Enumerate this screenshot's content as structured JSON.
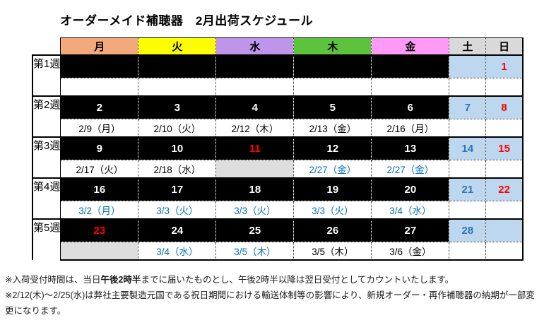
{
  "title": "オーダーメイド補聴器　2月出荷スケジュール",
  "colors": {
    "mon_header": "#F4A97C",
    "tue_header": "#FFFF00",
    "wed_header": "#BF95EC",
    "thu_header": "#5DC33B",
    "fri_header": "#FF9BF7",
    "weekend_header": "#D9D9D9",
    "weekend_cell_blue": "#BDD7EE",
    "closed_cell_gray": "#DEDEDE",
    "workday_cell_black": "#000000",
    "holiday_red": "#FF0000",
    "weekend_num_blue": "#2E75B6",
    "ship_date_blue": "#0070C0"
  },
  "table": {
    "day_headers": [
      {
        "key": "mon",
        "label": "月"
      },
      {
        "key": "tue",
        "label": "火"
      },
      {
        "key": "wed",
        "label": "水"
      },
      {
        "key": "thu",
        "label": "木"
      },
      {
        "key": "fri",
        "label": "金"
      },
      {
        "key": "sat",
        "label": "土"
      },
      {
        "key": "sun",
        "label": "日"
      }
    ],
    "weeks": [
      {
        "label": "第1週",
        "cells": [
          {
            "num": "",
            "num_style": "white",
            "cell_bg": "black",
            "ship": "",
            "ship_style": "black",
            "ship_bg": "white"
          },
          {
            "num": "",
            "num_style": "white",
            "cell_bg": "black",
            "ship": "",
            "ship_style": "black",
            "ship_bg": "white"
          },
          {
            "num": "",
            "num_style": "white",
            "cell_bg": "black",
            "ship": "",
            "ship_style": "black",
            "ship_bg": "white"
          },
          {
            "num": "",
            "num_style": "white",
            "cell_bg": "black",
            "ship": "",
            "ship_style": "black",
            "ship_bg": "white"
          },
          {
            "num": "",
            "num_style": "white",
            "cell_bg": "black",
            "ship": "",
            "ship_style": "black",
            "ship_bg": "white"
          },
          {
            "num": "",
            "num_style": "blue",
            "cell_bg": "weekend",
            "ship": "",
            "ship_style": "black",
            "ship_bg": "white"
          },
          {
            "num": "1",
            "num_style": "red",
            "cell_bg": "weekend",
            "ship": "",
            "ship_style": "black",
            "ship_bg": "white"
          }
        ]
      },
      {
        "label": "第2週",
        "cells": [
          {
            "num": "2",
            "num_style": "white",
            "cell_bg": "black",
            "ship": "2/9（月）",
            "ship_style": "black",
            "ship_bg": "white"
          },
          {
            "num": "3",
            "num_style": "white",
            "cell_bg": "black",
            "ship": "2/10（火）",
            "ship_style": "black",
            "ship_bg": "white"
          },
          {
            "num": "4",
            "num_style": "white",
            "cell_bg": "black",
            "ship": "2/12（木）",
            "ship_style": "black",
            "ship_bg": "white"
          },
          {
            "num": "5",
            "num_style": "white",
            "cell_bg": "black",
            "ship": "2/13（金）",
            "ship_style": "black",
            "ship_bg": "white"
          },
          {
            "num": "6",
            "num_style": "white",
            "cell_bg": "black",
            "ship": "2/16（月）",
            "ship_style": "black",
            "ship_bg": "white"
          },
          {
            "num": "7",
            "num_style": "blue",
            "cell_bg": "weekend",
            "ship": "",
            "ship_style": "black",
            "ship_bg": "white"
          },
          {
            "num": "8",
            "num_style": "red",
            "cell_bg": "weekend",
            "ship": "",
            "ship_style": "black",
            "ship_bg": "white"
          }
        ]
      },
      {
        "label": "第3週",
        "cells": [
          {
            "num": "9",
            "num_style": "white",
            "cell_bg": "black",
            "ship": "2/17（火）",
            "ship_style": "black",
            "ship_bg": "white"
          },
          {
            "num": "10",
            "num_style": "white",
            "cell_bg": "black",
            "ship": "2/18（水）",
            "ship_style": "black",
            "ship_bg": "white"
          },
          {
            "num": "11",
            "num_style": "red",
            "cell_bg": "black",
            "ship": "",
            "ship_style": "black",
            "ship_bg": "gray"
          },
          {
            "num": "12",
            "num_style": "white",
            "cell_bg": "black",
            "ship": "2/27（金）",
            "ship_style": "blue",
            "ship_bg": "white"
          },
          {
            "num": "13",
            "num_style": "white",
            "cell_bg": "black",
            "ship": "2/27（金）",
            "ship_style": "blue",
            "ship_bg": "white"
          },
          {
            "num": "14",
            "num_style": "blue",
            "cell_bg": "weekend",
            "ship": "",
            "ship_style": "black",
            "ship_bg": "white"
          },
          {
            "num": "15",
            "num_style": "red",
            "cell_bg": "weekend",
            "ship": "",
            "ship_style": "black",
            "ship_bg": "white"
          }
        ]
      },
      {
        "label": "第4週",
        "cells": [
          {
            "num": "16",
            "num_style": "white",
            "cell_bg": "black",
            "ship": "3/2（月）",
            "ship_style": "blue",
            "ship_bg": "white"
          },
          {
            "num": "17",
            "num_style": "white",
            "cell_bg": "black",
            "ship": "3/3（火）",
            "ship_style": "blue",
            "ship_bg": "white"
          },
          {
            "num": "18",
            "num_style": "white",
            "cell_bg": "black",
            "ship": "3/3（火）",
            "ship_style": "blue",
            "ship_bg": "white"
          },
          {
            "num": "19",
            "num_style": "white",
            "cell_bg": "black",
            "ship": "3/3（火）",
            "ship_style": "blue",
            "ship_bg": "white"
          },
          {
            "num": "20",
            "num_style": "white",
            "cell_bg": "black",
            "ship": "3/4（水）",
            "ship_style": "blue",
            "ship_bg": "white"
          },
          {
            "num": "21",
            "num_style": "blue",
            "cell_bg": "weekend",
            "ship": "",
            "ship_style": "black",
            "ship_bg": "white"
          },
          {
            "num": "22",
            "num_style": "red",
            "cell_bg": "weekend",
            "ship": "",
            "ship_style": "black",
            "ship_bg": "white"
          }
        ]
      },
      {
        "label": "第5週",
        "cells": [
          {
            "num": "23",
            "num_style": "red",
            "cell_bg": "black",
            "ship": "",
            "ship_style": "black",
            "ship_bg": "gray"
          },
          {
            "num": "24",
            "num_style": "white",
            "cell_bg": "black",
            "ship": "3/4（水）",
            "ship_style": "blue",
            "ship_bg": "white"
          },
          {
            "num": "25",
            "num_style": "white",
            "cell_bg": "black",
            "ship": "3/5（木）",
            "ship_style": "blue",
            "ship_bg": "white"
          },
          {
            "num": "26",
            "num_style": "white",
            "cell_bg": "black",
            "ship": "3/5（木）",
            "ship_style": "black",
            "ship_bg": "white"
          },
          {
            "num": "27",
            "num_style": "white",
            "cell_bg": "black",
            "ship": "3/6（金）",
            "ship_style": "black",
            "ship_bg": "white"
          },
          {
            "num": "28",
            "num_style": "blue",
            "cell_bg": "weekend",
            "ship": "",
            "ship_style": "black",
            "ship_bg": "white"
          },
          {
            "num": "",
            "num_style": "blue",
            "cell_bg": "weekend",
            "ship": "",
            "ship_style": "black",
            "ship_bg": "white"
          }
        ]
      }
    ]
  },
  "notes": [
    {
      "segments": [
        {
          "text": "※入荷受付時間は、当日",
          "bold": false
        },
        {
          "text": "午後2時半",
          "bold": true
        },
        {
          "text": "までに届いたものとし、午後2時半以降は翌日受付としてカウントいたします。",
          "bold": false
        }
      ]
    },
    {
      "segments": [
        {
          "text": "※2/12(木)～2/25(水)は弊社主要製造元国である祝日期間における輸送体制等の影響により、新規オーダー・再作補聴器の納期が一部変更になります。",
          "bold": false
        }
      ]
    }
  ]
}
